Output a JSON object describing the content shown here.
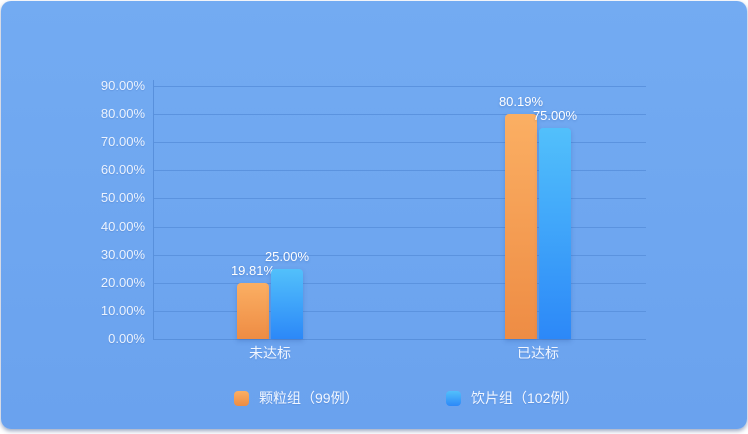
{
  "card": {
    "background_top": "#73ABF2",
    "background_bottom": "#6AA2EE",
    "gridline_color": "#5B93DF",
    "axis_text_color": "#ECF3FE"
  },
  "chart_data": {
    "type": "bar",
    "title": "",
    "categories": [
      "未达标",
      "已达标"
    ],
    "series": [
      {
        "name": "颗粒组（99例）",
        "values": [
          19.81,
          80.19
        ],
        "value_labels": [
          "19.81%",
          "80.19%"
        ],
        "color_top": "#FBAF63",
        "color_bottom": "#EE8C44"
      },
      {
        "name": "饮片组（102例）",
        "values": [
          25.0,
          75.0
        ],
        "value_labels": [
          "25.00%",
          "75.00%"
        ],
        "color_top": "#52C0FB",
        "color_bottom": "#2C88F8"
      }
    ],
    "y_axis": {
      "min": 0,
      "max": 90,
      "step": 10,
      "tick_labels": [
        "0.00%",
        "10.00%",
        "20.00%",
        "30.00%",
        "40.00%",
        "50.00%",
        "60.00%",
        "70.00%",
        "80.00%",
        "90.00%"
      ]
    },
    "grid": true,
    "legend_position": "bottom",
    "legend_entries": [
      "颗粒组（99例）",
      "饮片组（102例）"
    ]
  }
}
